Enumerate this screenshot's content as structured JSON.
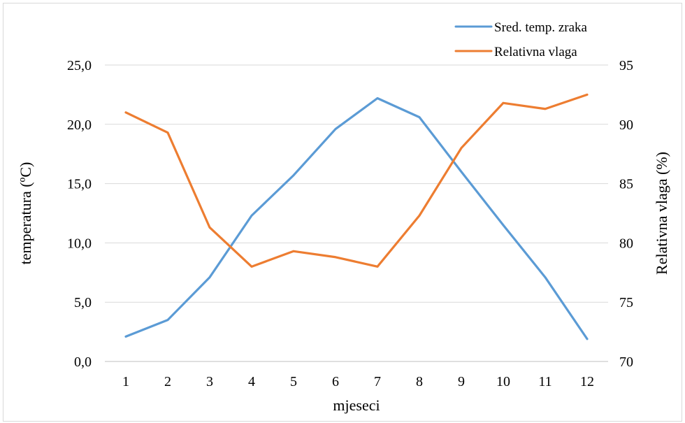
{
  "chart_data": {
    "type": "line",
    "title": "",
    "xlabel": "mjeseci",
    "ylabel": "temperatura (ºC)",
    "y2label": "Relativna vlaga (%)",
    "categories": [
      "1",
      "2",
      "3",
      "4",
      "5",
      "6",
      "7",
      "8",
      "9",
      "10",
      "11",
      "12"
    ],
    "ylim": [
      0,
      25
    ],
    "yticks": [
      "0,0",
      "5,0",
      "10,0",
      "15,0",
      "20,0",
      "25,0"
    ],
    "y2lim": [
      70,
      95
    ],
    "y2ticks": [
      "70",
      "75",
      "80",
      "85",
      "90",
      "95"
    ],
    "grid": true,
    "legend_position": "top-right",
    "series": [
      {
        "name": "Sred. temp. zraka",
        "axis": "left",
        "color": "#5b9bd5",
        "values": [
          2.1,
          3.5,
          7.1,
          12.3,
          15.7,
          19.6,
          22.2,
          20.6,
          16.0,
          11.5,
          7.1,
          1.9
        ]
      },
      {
        "name": "Relativna vlaga",
        "axis": "right",
        "color": "#ed7d31",
        "values": [
          91.0,
          89.3,
          81.3,
          78.0,
          79.3,
          78.8,
          78.0,
          82.3,
          88.0,
          91.8,
          91.3,
          92.5
        ]
      }
    ]
  }
}
